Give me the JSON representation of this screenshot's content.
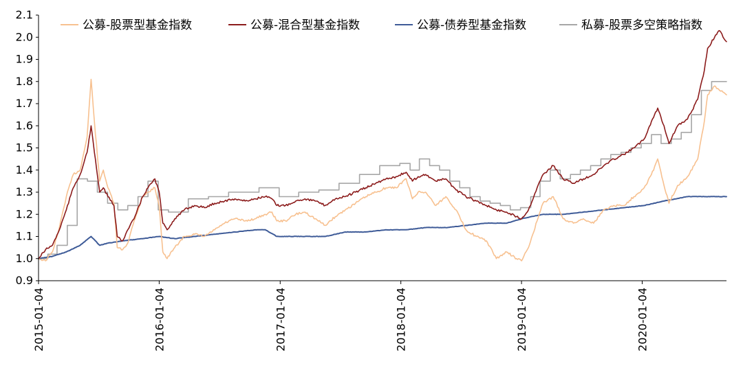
{
  "chart_data": {
    "type": "line",
    "title": "",
    "xlabel": "",
    "ylabel": "",
    "ylim": [
      0.9,
      2.1
    ],
    "xlim": [
      "2015-01-04",
      "2020-09-15"
    ],
    "yticks": [
      0.9,
      1.0,
      1.1,
      1.2,
      1.3,
      1.4,
      1.5,
      1.6,
      1.7,
      1.8,
      1.9,
      2.0,
      2.1
    ],
    "ytick_labels": [
      "0.9",
      "1.0",
      "1.1",
      "1.2",
      "1.3",
      "1.4",
      "1.5",
      "1.6",
      "1.7",
      "1.8",
      "1.9",
      "2.0",
      "2.1"
    ],
    "xticks": [
      "2015-01-04",
      "2016-01-04",
      "2017-01-04",
      "2018-01-04",
      "2019-01-04",
      "2020-01-04"
    ],
    "grid": false,
    "legend_position": "top",
    "series": [
      {
        "name": "公募-股票型基金指数",
        "color": "#f7c08f",
        "step": false,
        "points": [
          [
            "2015-01-04",
            1.0
          ],
          [
            "2015-01-25",
            0.99
          ],
          [
            "2015-02-15",
            1.03
          ],
          [
            "2015-03-08",
            1.14
          ],
          [
            "2015-03-29",
            1.28
          ],
          [
            "2015-04-19",
            1.38
          ],
          [
            "2015-05-10",
            1.4
          ],
          [
            "2015-05-31",
            1.55
          ],
          [
            "2015-06-12",
            1.81
          ],
          [
            "2015-06-22",
            1.62
          ],
          [
            "2015-07-08",
            1.35
          ],
          [
            "2015-07-19",
            1.4
          ],
          [
            "2015-08-02",
            1.32
          ],
          [
            "2015-08-20",
            1.25
          ],
          [
            "2015-08-30",
            1.05
          ],
          [
            "2015-09-15",
            1.04
          ],
          [
            "2015-10-01",
            1.07
          ],
          [
            "2015-10-20",
            1.17
          ],
          [
            "2015-11-15",
            1.28
          ],
          [
            "2015-12-01",
            1.3
          ],
          [
            "2015-12-22",
            1.32
          ],
          [
            "2016-01-04",
            1.24
          ],
          [
            "2016-01-15",
            1.03
          ],
          [
            "2016-01-28",
            1.0
          ],
          [
            "2016-02-20",
            1.05
          ],
          [
            "2016-03-20",
            1.1
          ],
          [
            "2016-04-20",
            1.11
          ],
          [
            "2016-05-20",
            1.1
          ],
          [
            "2016-06-20",
            1.13
          ],
          [
            "2016-07-20",
            1.16
          ],
          [
            "2016-08-20",
            1.18
          ],
          [
            "2016-09-20",
            1.17
          ],
          [
            "2016-10-20",
            1.18
          ],
          [
            "2016-11-20",
            1.2
          ],
          [
            "2016-12-10",
            1.21
          ],
          [
            "2016-12-25",
            1.17
          ],
          [
            "2017-01-20",
            1.17
          ],
          [
            "2017-02-20",
            1.2
          ],
          [
            "2017-03-20",
            1.21
          ],
          [
            "2017-04-20",
            1.18
          ],
          [
            "2017-05-20",
            1.15
          ],
          [
            "2017-06-20",
            1.19
          ],
          [
            "2017-07-20",
            1.22
          ],
          [
            "2017-08-20",
            1.25
          ],
          [
            "2017-09-20",
            1.28
          ],
          [
            "2017-10-20",
            1.3
          ],
          [
            "2017-11-20",
            1.32
          ],
          [
            "2017-12-20",
            1.32
          ],
          [
            "2018-01-20",
            1.36
          ],
          [
            "2018-02-08",
            1.27
          ],
          [
            "2018-02-25",
            1.3
          ],
          [
            "2018-03-20",
            1.3
          ],
          [
            "2018-04-20",
            1.24
          ],
          [
            "2018-05-20",
            1.28
          ],
          [
            "2018-06-20",
            1.22
          ],
          [
            "2018-07-20",
            1.13
          ],
          [
            "2018-08-20",
            1.1
          ],
          [
            "2018-09-20",
            1.08
          ],
          [
            "2018-10-20",
            1.0
          ],
          [
            "2018-11-20",
            1.03
          ],
          [
            "2018-12-20",
            1.0
          ],
          [
            "2019-01-04",
            0.99
          ],
          [
            "2019-01-25",
            1.05
          ],
          [
            "2019-02-20",
            1.17
          ],
          [
            "2019-03-10",
            1.25
          ],
          [
            "2019-04-10",
            1.28
          ],
          [
            "2019-05-10",
            1.18
          ],
          [
            "2019-06-10",
            1.16
          ],
          [
            "2019-07-10",
            1.18
          ],
          [
            "2019-08-10",
            1.16
          ],
          [
            "2019-09-10",
            1.22
          ],
          [
            "2019-10-10",
            1.24
          ],
          [
            "2019-11-10",
            1.24
          ],
          [
            "2019-12-10",
            1.28
          ],
          [
            "2020-01-10",
            1.32
          ],
          [
            "2020-02-01",
            1.38
          ],
          [
            "2020-02-20",
            1.45
          ],
          [
            "2020-03-10",
            1.33
          ],
          [
            "2020-03-25",
            1.25
          ],
          [
            "2020-04-20",
            1.33
          ],
          [
            "2020-05-20",
            1.37
          ],
          [
            "2020-06-20",
            1.45
          ],
          [
            "2020-07-10",
            1.62
          ],
          [
            "2020-07-20",
            1.74
          ],
          [
            "2020-08-10",
            1.78
          ],
          [
            "2020-08-25",
            1.76
          ],
          [
            "2020-09-15",
            1.74
          ]
        ]
      },
      {
        "name": "公募-混合型基金指数",
        "color": "#8b1a1a",
        "step": false,
        "points": [
          [
            "2015-01-04",
            1.0
          ],
          [
            "2015-01-25",
            1.04
          ],
          [
            "2015-02-15",
            1.06
          ],
          [
            "2015-03-08",
            1.13
          ],
          [
            "2015-03-29",
            1.22
          ],
          [
            "2015-04-19",
            1.32
          ],
          [
            "2015-05-10",
            1.38
          ],
          [
            "2015-05-31",
            1.48
          ],
          [
            "2015-06-12",
            1.6
          ],
          [
            "2015-06-22",
            1.48
          ],
          [
            "2015-07-08",
            1.3
          ],
          [
            "2015-07-19",
            1.32
          ],
          [
            "2015-08-02",
            1.28
          ],
          [
            "2015-08-20",
            1.24
          ],
          [
            "2015-08-30",
            1.1
          ],
          [
            "2015-09-15",
            1.08
          ],
          [
            "2015-10-01",
            1.13
          ],
          [
            "2015-10-20",
            1.18
          ],
          [
            "2015-11-15",
            1.28
          ],
          [
            "2015-12-01",
            1.32
          ],
          [
            "2015-12-22",
            1.36
          ],
          [
            "2016-01-04",
            1.3
          ],
          [
            "2016-01-15",
            1.16
          ],
          [
            "2016-01-28",
            1.13
          ],
          [
            "2016-02-20",
            1.18
          ],
          [
            "2016-03-20",
            1.22
          ],
          [
            "2016-04-20",
            1.24
          ],
          [
            "2016-05-20",
            1.23
          ],
          [
            "2016-06-20",
            1.25
          ],
          [
            "2016-07-20",
            1.26
          ],
          [
            "2016-08-20",
            1.27
          ],
          [
            "2016-09-20",
            1.26
          ],
          [
            "2016-10-20",
            1.27
          ],
          [
            "2016-11-20",
            1.28
          ],
          [
            "2016-12-10",
            1.27
          ],
          [
            "2016-12-25",
            1.24
          ],
          [
            "2017-01-20",
            1.24
          ],
          [
            "2017-02-20",
            1.26
          ],
          [
            "2017-03-20",
            1.27
          ],
          [
            "2017-04-20",
            1.26
          ],
          [
            "2017-05-20",
            1.24
          ],
          [
            "2017-06-20",
            1.27
          ],
          [
            "2017-07-20",
            1.28
          ],
          [
            "2017-08-20",
            1.3
          ],
          [
            "2017-09-20",
            1.32
          ],
          [
            "2017-10-20",
            1.34
          ],
          [
            "2017-11-20",
            1.36
          ],
          [
            "2017-12-20",
            1.37
          ],
          [
            "2018-01-20",
            1.39
          ],
          [
            "2018-02-08",
            1.35
          ],
          [
            "2018-02-25",
            1.37
          ],
          [
            "2018-03-20",
            1.38
          ],
          [
            "2018-04-20",
            1.35
          ],
          [
            "2018-05-20",
            1.36
          ],
          [
            "2018-06-20",
            1.31
          ],
          [
            "2018-07-20",
            1.28
          ],
          [
            "2018-08-20",
            1.26
          ],
          [
            "2018-09-20",
            1.24
          ],
          [
            "2018-10-20",
            1.22
          ],
          [
            "2018-11-20",
            1.21
          ],
          [
            "2018-12-20",
            1.19
          ],
          [
            "2019-01-04",
            1.18
          ],
          [
            "2019-01-25",
            1.22
          ],
          [
            "2019-02-20",
            1.32
          ],
          [
            "2019-03-10",
            1.38
          ],
          [
            "2019-04-10",
            1.42
          ],
          [
            "2019-05-10",
            1.36
          ],
          [
            "2019-06-10",
            1.34
          ],
          [
            "2019-07-10",
            1.36
          ],
          [
            "2019-08-10",
            1.38
          ],
          [
            "2019-09-10",
            1.42
          ],
          [
            "2019-10-10",
            1.45
          ],
          [
            "2019-11-10",
            1.47
          ],
          [
            "2019-12-10",
            1.5
          ],
          [
            "2020-01-10",
            1.54
          ],
          [
            "2020-02-01",
            1.62
          ],
          [
            "2020-02-20",
            1.68
          ],
          [
            "2020-03-10",
            1.6
          ],
          [
            "2020-03-25",
            1.52
          ],
          [
            "2020-04-20",
            1.6
          ],
          [
            "2020-05-20",
            1.63
          ],
          [
            "2020-06-20",
            1.72
          ],
          [
            "2020-07-10",
            1.85
          ],
          [
            "2020-07-20",
            1.95
          ],
          [
            "2020-08-10",
            2.0
          ],
          [
            "2020-08-25",
            2.03
          ],
          [
            "2020-09-15",
            1.98
          ]
        ]
      },
      {
        "name": "公募-债券型基金指数",
        "color": "#3d5a97",
        "step": false,
        "points": [
          [
            "2015-01-04",
            1.0
          ],
          [
            "2015-02-15",
            1.01
          ],
          [
            "2015-03-29",
            1.03
          ],
          [
            "2015-05-10",
            1.06
          ],
          [
            "2015-06-12",
            1.1
          ],
          [
            "2015-07-08",
            1.06
          ],
          [
            "2015-08-02",
            1.07
          ],
          [
            "2015-09-15",
            1.08
          ],
          [
            "2015-11-15",
            1.09
          ],
          [
            "2016-01-04",
            1.1
          ],
          [
            "2016-02-20",
            1.09
          ],
          [
            "2016-04-20",
            1.1
          ],
          [
            "2016-06-20",
            1.11
          ],
          [
            "2016-08-20",
            1.12
          ],
          [
            "2016-10-20",
            1.13
          ],
          [
            "2016-11-20",
            1.13
          ],
          [
            "2016-12-25",
            1.1
          ],
          [
            "2017-03-20",
            1.1
          ],
          [
            "2017-05-20",
            1.1
          ],
          [
            "2017-07-20",
            1.12
          ],
          [
            "2017-09-20",
            1.12
          ],
          [
            "2017-11-20",
            1.13
          ],
          [
            "2018-01-20",
            1.13
          ],
          [
            "2018-03-20",
            1.14
          ],
          [
            "2018-05-20",
            1.14
          ],
          [
            "2018-07-20",
            1.15
          ],
          [
            "2018-09-20",
            1.16
          ],
          [
            "2018-11-20",
            1.16
          ],
          [
            "2019-01-04",
            1.18
          ],
          [
            "2019-03-10",
            1.2
          ],
          [
            "2019-05-10",
            1.2
          ],
          [
            "2019-07-10",
            1.21
          ],
          [
            "2019-09-10",
            1.22
          ],
          [
            "2019-11-10",
            1.23
          ],
          [
            "2020-01-10",
            1.24
          ],
          [
            "2020-03-10",
            1.26
          ],
          [
            "2020-05-20",
            1.28
          ],
          [
            "2020-07-10",
            1.28
          ],
          [
            "2020-09-15",
            1.28
          ]
        ]
      },
      {
        "name": "私募-股票多空策略指数",
        "color": "#a6a6a6",
        "step": true,
        "points": [
          [
            "2015-01-04",
            1.0
          ],
          [
            "2015-02-01",
            1.02
          ],
          [
            "2015-03-01",
            1.06
          ],
          [
            "2015-04-01",
            1.15
          ],
          [
            "2015-05-01",
            1.36
          ],
          [
            "2015-06-01",
            1.35
          ],
          [
            "2015-07-01",
            1.3
          ],
          [
            "2015-08-01",
            1.25
          ],
          [
            "2015-09-01",
            1.22
          ],
          [
            "2015-10-01",
            1.24
          ],
          [
            "2015-11-01",
            1.28
          ],
          [
            "2015-12-01",
            1.35
          ],
          [
            "2016-01-01",
            1.22
          ],
          [
            "2016-02-01",
            1.21
          ],
          [
            "2016-04-01",
            1.27
          ],
          [
            "2016-06-01",
            1.28
          ],
          [
            "2016-08-01",
            1.3
          ],
          [
            "2016-10-01",
            1.3
          ],
          [
            "2016-11-01",
            1.32
          ],
          [
            "2017-01-01",
            1.28
          ],
          [
            "2017-03-01",
            1.3
          ],
          [
            "2017-05-01",
            1.31
          ],
          [
            "2017-07-01",
            1.34
          ],
          [
            "2017-09-01",
            1.38
          ],
          [
            "2017-11-01",
            1.42
          ],
          [
            "2018-01-01",
            1.43
          ],
          [
            "2018-02-01",
            1.4
          ],
          [
            "2018-03-01",
            1.45
          ],
          [
            "2018-04-01",
            1.42
          ],
          [
            "2018-05-01",
            1.4
          ],
          [
            "2018-06-01",
            1.35
          ],
          [
            "2018-07-01",
            1.32
          ],
          [
            "2018-08-01",
            1.28
          ],
          [
            "2018-09-01",
            1.26
          ],
          [
            "2018-10-01",
            1.25
          ],
          [
            "2018-11-01",
            1.24
          ],
          [
            "2018-12-01",
            1.22
          ],
          [
            "2019-01-01",
            1.23
          ],
          [
            "2019-02-01",
            1.28
          ],
          [
            "2019-03-01",
            1.35
          ],
          [
            "2019-04-01",
            1.4
          ],
          [
            "2019-05-01",
            1.36
          ],
          [
            "2019-06-01",
            1.38
          ],
          [
            "2019-07-01",
            1.4
          ],
          [
            "2019-08-01",
            1.42
          ],
          [
            "2019-09-01",
            1.45
          ],
          [
            "2019-10-01",
            1.47
          ],
          [
            "2019-11-01",
            1.48
          ],
          [
            "2019-12-01",
            1.5
          ],
          [
            "2020-01-01",
            1.52
          ],
          [
            "2020-02-01",
            1.56
          ],
          [
            "2020-03-01",
            1.52
          ],
          [
            "2020-04-01",
            1.54
          ],
          [
            "2020-05-01",
            1.57
          ],
          [
            "2020-06-01",
            1.65
          ],
          [
            "2020-07-01",
            1.76
          ],
          [
            "2020-08-01",
            1.8
          ],
          [
            "2020-09-15",
            1.8
          ]
        ]
      }
    ]
  }
}
